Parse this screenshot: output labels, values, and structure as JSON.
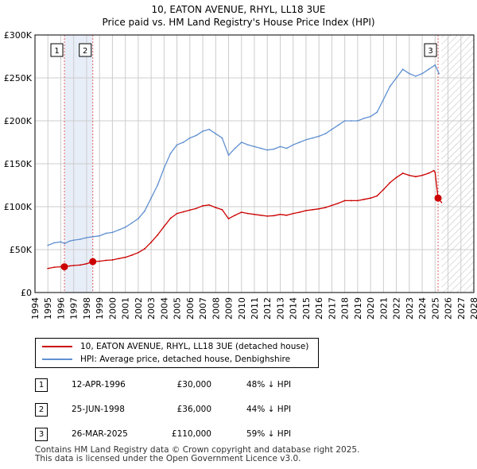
{
  "title_line1": "10, EATON AVENUE, RHYL, LL18 3UE",
  "title_line2": "Price paid vs. HM Land Registry's House Price Index (HPI)",
  "colors": {
    "property": "#cc0000",
    "hpi": "#6090d0",
    "shade": "#e8eef8",
    "vline": "#e06060",
    "grid": "#cccccc"
  },
  "chart_data": {
    "type": "line",
    "title": "Price paid vs. HM Land Registry's House Price Index (HPI)",
    "xlabel": "",
    "ylabel": "",
    "xlim": [
      1994,
      2028
    ],
    "ylim": [
      0,
      300000
    ],
    "y_ticks": [
      0,
      50000,
      100000,
      150000,
      200000,
      250000,
      300000
    ],
    "y_tick_labels": [
      "£0",
      "£50K",
      "£100K",
      "£150K",
      "£200K",
      "£250K",
      "£300K"
    ],
    "x_ticks": [
      1994,
      1995,
      1996,
      1997,
      1998,
      1999,
      2000,
      2001,
      2002,
      2003,
      2004,
      2005,
      2006,
      2007,
      2008,
      2009,
      2010,
      2011,
      2012,
      2013,
      2014,
      2015,
      2016,
      2017,
      2018,
      2019,
      2020,
      2021,
      2022,
      2023,
      2024,
      2025,
      2026,
      2027,
      2028
    ],
    "grid": true,
    "future_hatch_from": 2025.5,
    "series": [
      {
        "name": "HPI: Average price, detached house, Denbighshire",
        "color": "#6090d0",
        "x": [
          1995.0,
          1995.5,
          1996.0,
          1996.3,
          1996.7,
          1997.0,
          1997.5,
          1998.0,
          1998.5,
          1999.0,
          1999.5,
          2000.0,
          2000.5,
          2001.0,
          2001.5,
          2002.0,
          2002.5,
          2003.0,
          2003.5,
          2004.0,
          2004.5,
          2005.0,
          2005.5,
          2006.0,
          2006.5,
          2007.0,
          2007.5,
          2008.0,
          2008.5,
          2009.0,
          2009.5,
          2010.0,
          2010.5,
          2011.0,
          2011.5,
          2012.0,
          2012.5,
          2013.0,
          2013.5,
          2014.0,
          2014.5,
          2015.0,
          2015.5,
          2016.0,
          2016.5,
          2017.0,
          2017.5,
          2018.0,
          2018.5,
          2019.0,
          2019.5,
          2020.0,
          2020.5,
          2021.0,
          2021.5,
          2022.0,
          2022.5,
          2023.0,
          2023.5,
          2024.0,
          2024.5,
          2025.0,
          2025.3
        ],
        "values": [
          55000,
          58000,
          59000,
          57000,
          60000,
          61000,
          62000,
          64000,
          65000,
          66000,
          69000,
          70000,
          73000,
          76000,
          81000,
          86000,
          95000,
          110000,
          125000,
          145000,
          162000,
          172000,
          175000,
          180000,
          183000,
          188000,
          190000,
          185000,
          180000,
          160000,
          168000,
          175000,
          172000,
          170000,
          168000,
          166000,
          167000,
          170000,
          168000,
          172000,
          175000,
          178000,
          180000,
          182000,
          185000,
          190000,
          195000,
          200000,
          200000,
          200000,
          203000,
          205000,
          210000,
          225000,
          240000,
          250000,
          260000,
          255000,
          252000,
          255000,
          260000,
          265000,
          255000
        ]
      },
      {
        "name": "10, EATON AVENUE, RHYL, LL18 3UE (detached house)",
        "color": "#cc0000",
        "x": [
          1995.0,
          1995.5,
          1996.0,
          1996.28,
          1996.7,
          1997.0,
          1997.5,
          1998.0,
          1998.48,
          1999.0,
          1999.5,
          2000.0,
          2000.5,
          2001.0,
          2001.5,
          2002.0,
          2002.5,
          2003.0,
          2003.5,
          2004.0,
          2004.5,
          2005.0,
          2005.5,
          2006.0,
          2006.5,
          2007.0,
          2007.5,
          2008.0,
          2008.5,
          2009.0,
          2009.5,
          2010.0,
          2010.5,
          2011.0,
          2011.5,
          2012.0,
          2012.5,
          2013.0,
          2013.5,
          2014.0,
          2014.5,
          2015.0,
          2015.5,
          2016.0,
          2016.5,
          2017.0,
          2017.5,
          2018.0,
          2018.5,
          2019.0,
          2019.5,
          2020.0,
          2020.5,
          2021.0,
          2021.5,
          2022.0,
          2022.5,
          2023.0,
          2023.5,
          2024.0,
          2024.5,
          2024.9,
          2025.0,
          2025.23,
          2025.5
        ],
        "values": [
          28000,
          29500,
          30000,
          30000,
          31000,
          31500,
          32000,
          33500,
          36000,
          36500,
          37500,
          38000,
          39500,
          41000,
          43500,
          46500,
          51000,
          58500,
          67000,
          77000,
          86500,
          92000,
          94000,
          96000,
          98000,
          101000,
          102000,
          99000,
          96500,
          86000,
          90000,
          93500,
          92000,
          91000,
          90000,
          89000,
          89500,
          91000,
          90000,
          92000,
          93500,
          95500,
          96500,
          97500,
          99000,
          101500,
          104000,
          107000,
          107000,
          107000,
          108500,
          110000,
          112500,
          120000,
          128000,
          134000,
          139000,
          136500,
          135000,
          136500,
          139000,
          142000,
          140000,
          110000,
          105000
        ]
      }
    ],
    "transactions": [
      {
        "label": "1",
        "x": 1996.28,
        "price": 30000
      },
      {
        "label": "2",
        "x": 1998.48,
        "price": 36000
      },
      {
        "label": "3",
        "x": 2025.23,
        "price": 110000
      }
    ]
  },
  "legend": {
    "property_label": "10, EATON AVENUE, RHYL, LL18 3UE (detached house)",
    "hpi_label": "HPI: Average price, detached house, Denbighshire"
  },
  "sales": [
    {
      "num": "1",
      "date": "12-APR-1996",
      "price": "£30,000",
      "hpi": "48% ↓ HPI"
    },
    {
      "num": "2",
      "date": "25-JUN-1998",
      "price": "£36,000",
      "hpi": "44% ↓ HPI"
    },
    {
      "num": "3",
      "date": "26-MAR-2025",
      "price": "£110,000",
      "hpi": "59% ↓ HPI"
    }
  ],
  "footer": {
    "line1": "Contains HM Land Registry data © Crown copyright and database right 2025.",
    "line2": "This data is licensed under the Open Government Licence v3.0."
  }
}
